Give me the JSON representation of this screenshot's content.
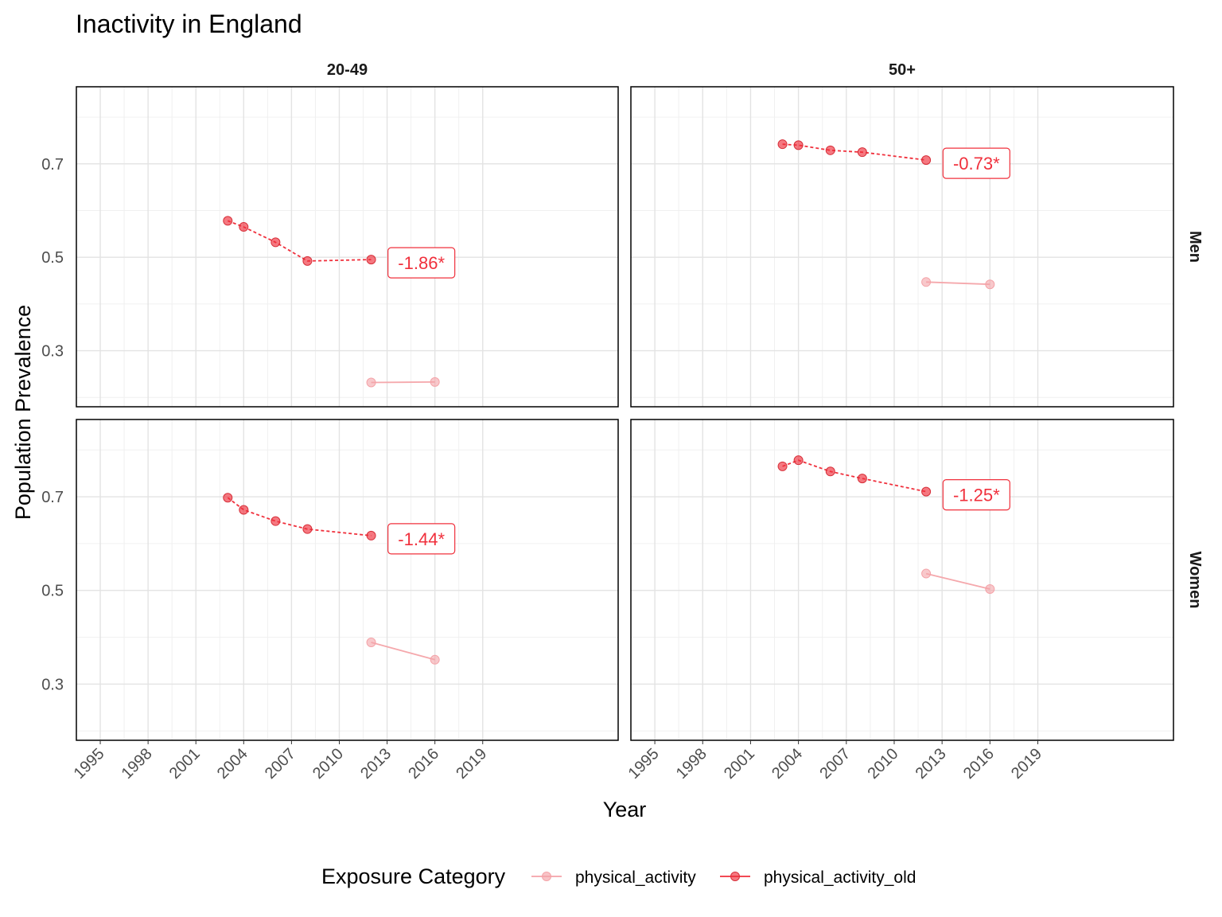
{
  "chart_data": {
    "type": "line",
    "title": "Inactivity in England",
    "xlabel": "Year",
    "ylabel": "Population Prevalence",
    "xlim": [
      1993.5,
      2027.5
    ],
    "ylim": [
      0.18,
      0.865
    ],
    "x_ticks": [
      1995,
      1998,
      2001,
      2004,
      2007,
      2010,
      2013,
      2016,
      2019
    ],
    "y_ticks": [
      0.3,
      0.5,
      0.7
    ],
    "grid": true,
    "legend": {
      "title": "Exposure Category",
      "position": "bottom",
      "entries": [
        "physical_activity",
        "physical_activity_old"
      ]
    },
    "colors": {
      "physical_activity": "#f4a3a8",
      "physical_activity_old": "#f0303c"
    },
    "facet_cols": [
      "20-49",
      "50+"
    ],
    "facet_rows": [
      "Men",
      "Women"
    ],
    "panels": [
      {
        "col": "20-49",
        "row": "Men",
        "annotation": "-1.86*",
        "series": [
          {
            "name": "physical_activity_old",
            "x": [
              2003,
              2004,
              2006,
              2008,
              2012
            ],
            "y": [
              0.578,
              0.565,
              0.532,
              0.492,
              0.495
            ]
          },
          {
            "name": "physical_activity",
            "x": [
              2012,
              2016
            ],
            "y": [
              0.232,
              0.233
            ]
          }
        ]
      },
      {
        "col": "50+",
        "row": "Men",
        "annotation": "-0.73*",
        "series": [
          {
            "name": "physical_activity_old",
            "x": [
              2003,
              2004,
              2006,
              2008,
              2012
            ],
            "y": [
              0.742,
              0.74,
              0.729,
              0.725,
              0.708
            ]
          },
          {
            "name": "physical_activity",
            "x": [
              2012,
              2016
            ],
            "y": [
              0.447,
              0.442
            ]
          }
        ]
      },
      {
        "col": "20-49",
        "row": "Women",
        "annotation": "-1.44*",
        "series": [
          {
            "name": "physical_activity_old",
            "x": [
              2003,
              2004,
              2006,
              2008,
              2012
            ],
            "y": [
              0.698,
              0.672,
              0.648,
              0.631,
              0.617
            ]
          },
          {
            "name": "physical_activity",
            "x": [
              2012,
              2016
            ],
            "y": [
              0.389,
              0.352
            ]
          }
        ]
      },
      {
        "col": "50+",
        "row": "Women",
        "annotation": "-1.25*",
        "series": [
          {
            "name": "physical_activity_old",
            "x": [
              2003,
              2004,
              2006,
              2008,
              2012
            ],
            "y": [
              0.765,
              0.778,
              0.754,
              0.739,
              0.711
            ]
          },
          {
            "name": "physical_activity",
            "x": [
              2012,
              2016
            ],
            "y": [
              0.536,
              0.503
            ]
          }
        ]
      }
    ]
  }
}
